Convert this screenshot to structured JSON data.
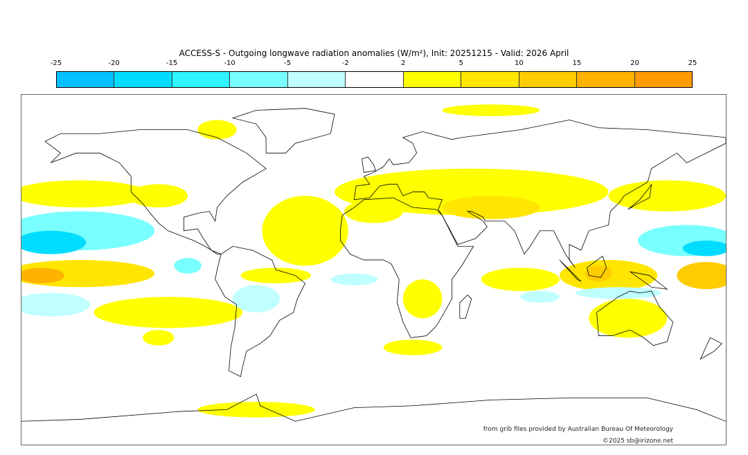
{
  "title": "ACCESS-S - Outgoing longwave radiation anomalies (W/m²), Init: 20251215 - Valid: 2026 April",
  "colorbar": {
    "ticks": [
      "-25",
      "-20",
      "-15",
      "-10",
      "-5",
      "-2",
      "2",
      "5",
      "10",
      "15",
      "20",
      "25"
    ],
    "colors": [
      "#00c0ff",
      "#00dcff",
      "#30f4ff",
      "#78ffff",
      "#bfffff",
      "#ffffff",
      "#ffff00",
      "#ffe600",
      "#ffcc00",
      "#ffb300",
      "#ff9a00"
    ]
  },
  "credit": "from grib files provided by Australian Bureau Of Meteorology",
  "copyright": "©2025 sb@irizone.net",
  "anomaly_regions": [
    {
      "lon": -150,
      "lat": 39,
      "rlon": 35,
      "rlat": 7,
      "value": 3
    },
    {
      "lon": -110,
      "lat": 38,
      "rlon": 15,
      "rlat": 6,
      "value": 3
    },
    {
      "lon": -150,
      "lat": 20,
      "rlon": 38,
      "rlat": 10,
      "value": -6
    },
    {
      "lon": -165,
      "lat": 14,
      "rlon": 18,
      "rlat": 6,
      "value": -16
    },
    {
      "lon": -150,
      "lat": -2,
      "rlon": 38,
      "rlat": 7,
      "value": 7
    },
    {
      "lon": -170,
      "lat": -3,
      "rlon": 12,
      "rlat": 4,
      "value": 16
    },
    {
      "lon": -165,
      "lat": -18,
      "rlon": 20,
      "rlat": 6,
      "value": -5
    },
    {
      "lon": -105,
      "lat": -22,
      "rlon": 38,
      "rlat": 8,
      "value": 3
    },
    {
      "lon": -60,
      "lat": -15,
      "rlon": 12,
      "rlat": 7,
      "value": -5
    },
    {
      "lon": -95,
      "lat": 2,
      "rlon": 7,
      "rlat": 4,
      "value": -6
    },
    {
      "lon": -35,
      "lat": 20,
      "rlon": 22,
      "rlat": 18,
      "value": 3
    },
    {
      "lon": -50,
      "lat": -3,
      "rlon": 18,
      "rlat": 4,
      "value": 3
    },
    {
      "lon": -10,
      "lat": -5,
      "rlon": 12,
      "rlat": 3,
      "value": -3
    },
    {
      "lon": 50,
      "lat": 40,
      "rlon": 70,
      "rlat": 12,
      "value": 4
    },
    {
      "lon": 60,
      "lat": 32,
      "rlon": 25,
      "rlat": 6,
      "value": 7
    },
    {
      "lon": 150,
      "lat": 38,
      "rlon": 30,
      "rlat": 8,
      "value": 4
    },
    {
      "lon": 0,
      "lat": 30,
      "rlon": 15,
      "rlat": 6,
      "value": 3
    },
    {
      "lon": 25,
      "lat": -15,
      "rlon": 10,
      "rlat": 10,
      "value": 3
    },
    {
      "lon": 20,
      "lat": -40,
      "rlon": 15,
      "rlat": 4,
      "value": 3
    },
    {
      "lon": 75,
      "lat": -5,
      "rlon": 20,
      "rlat": 6,
      "value": 4
    },
    {
      "lon": 120,
      "lat": -3,
      "rlon": 25,
      "rlat": 8,
      "value": 6
    },
    {
      "lon": 115,
      "lat": -2,
      "rlon": 7,
      "rlat": 4,
      "value": 14
    },
    {
      "lon": 160,
      "lat": 15,
      "rlon": 25,
      "rlat": 8,
      "value": -8
    },
    {
      "lon": 170,
      "lat": 11,
      "rlon": 12,
      "rlat": 4,
      "value": -20
    },
    {
      "lon": 170,
      "lat": -3,
      "rlon": 15,
      "rlat": 7,
      "value": 12
    },
    {
      "lon": 130,
      "lat": -25,
      "rlon": 20,
      "rlat": 10,
      "value": 3
    },
    {
      "lon": 125,
      "lat": -12,
      "rlon": 22,
      "rlat": 3,
      "value": -5
    },
    {
      "lon": 85,
      "lat": -14,
      "rlon": 10,
      "rlat": 3,
      "value": -5
    },
    {
      "lon": 60,
      "lat": 82,
      "rlon": 25,
      "rlat": 3,
      "value": 3
    },
    {
      "lon": -80,
      "lat": 72,
      "rlon": 10,
      "rlat": 5,
      "value": 3
    },
    {
      "lon": -60,
      "lat": -72,
      "rlon": 30,
      "rlat": 4,
      "value": 3
    },
    {
      "lon": -110,
      "lat": -35,
      "rlon": 8,
      "rlat": 4,
      "value": 3
    }
  ]
}
